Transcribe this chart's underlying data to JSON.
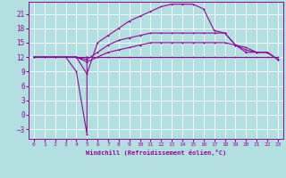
{
  "xlabel": "Windchill (Refroidissement éolien,°C)",
  "bg_color": "#b2e0e0",
  "grid_color": "#ffffff",
  "line_color": "#990099",
  "x_ticks": [
    0,
    1,
    2,
    3,
    4,
    5,
    6,
    7,
    8,
    9,
    10,
    11,
    12,
    13,
    14,
    15,
    16,
    17,
    18,
    19,
    20,
    21,
    22,
    23
  ],
  "y_ticks": [
    -3,
    0,
    3,
    6,
    9,
    12,
    15,
    18,
    21
  ],
  "xlim": [
    -0.5,
    23.5
  ],
  "ylim": [
    -5.0,
    23.5
  ],
  "line1_x": [
    0,
    1,
    2,
    3,
    4,
    5,
    6,
    7,
    8,
    9,
    10,
    11,
    12,
    13,
    14,
    15,
    16,
    17,
    18,
    19,
    20,
    21,
    22,
    23
  ],
  "line1_y": [
    12,
    12,
    12,
    12,
    12,
    12,
    12,
    12,
    12,
    12,
    12,
    12,
    12,
    12,
    12,
    12,
    12,
    12,
    12,
    12,
    12,
    12,
    12,
    12
  ],
  "line2_x": [
    0,
    1,
    2,
    3,
    4,
    5,
    6,
    7,
    8,
    9,
    10,
    11,
    12,
    13,
    14,
    15,
    16,
    17,
    18,
    19,
    20,
    21,
    22,
    23
  ],
  "line2_y": [
    12,
    12,
    12,
    12,
    12,
    8.5,
    15,
    16.5,
    18,
    19.5,
    20.5,
    21.5,
    22.5,
    23,
    23,
    23,
    22,
    17.5,
    17,
    14.5,
    13,
    13,
    13,
    11.5
  ],
  "line3_x": [
    0,
    1,
    2,
    3,
    4,
    5,
    6,
    7,
    8,
    9,
    10,
    11,
    12,
    13,
    14,
    15,
    16,
    17,
    18,
    19,
    20,
    21,
    22,
    23
  ],
  "line3_y": [
    12,
    12,
    12,
    12,
    12,
    11.5,
    13,
    14.5,
    15.5,
    16,
    16.5,
    17,
    17,
    17,
    17,
    17,
    17,
    17,
    17,
    14.5,
    14,
    13,
    13,
    11.5
  ],
  "line4_x": [
    0,
    1,
    2,
    3,
    4,
    5,
    6,
    7,
    8,
    9,
    10,
    11,
    12,
    13,
    14,
    15,
    16,
    17,
    18,
    19,
    20,
    21,
    22,
    23
  ],
  "line4_y": [
    12,
    12,
    12,
    12,
    12,
    11,
    12,
    13,
    13.5,
    14,
    14.5,
    15,
    15,
    15,
    15,
    15,
    15,
    15,
    15,
    14.5,
    13.5,
    13,
    13,
    11.5
  ],
  "line5_x": [
    3,
    4,
    5,
    5
  ],
  "line5_y": [
    12,
    9,
    -4,
    12
  ]
}
